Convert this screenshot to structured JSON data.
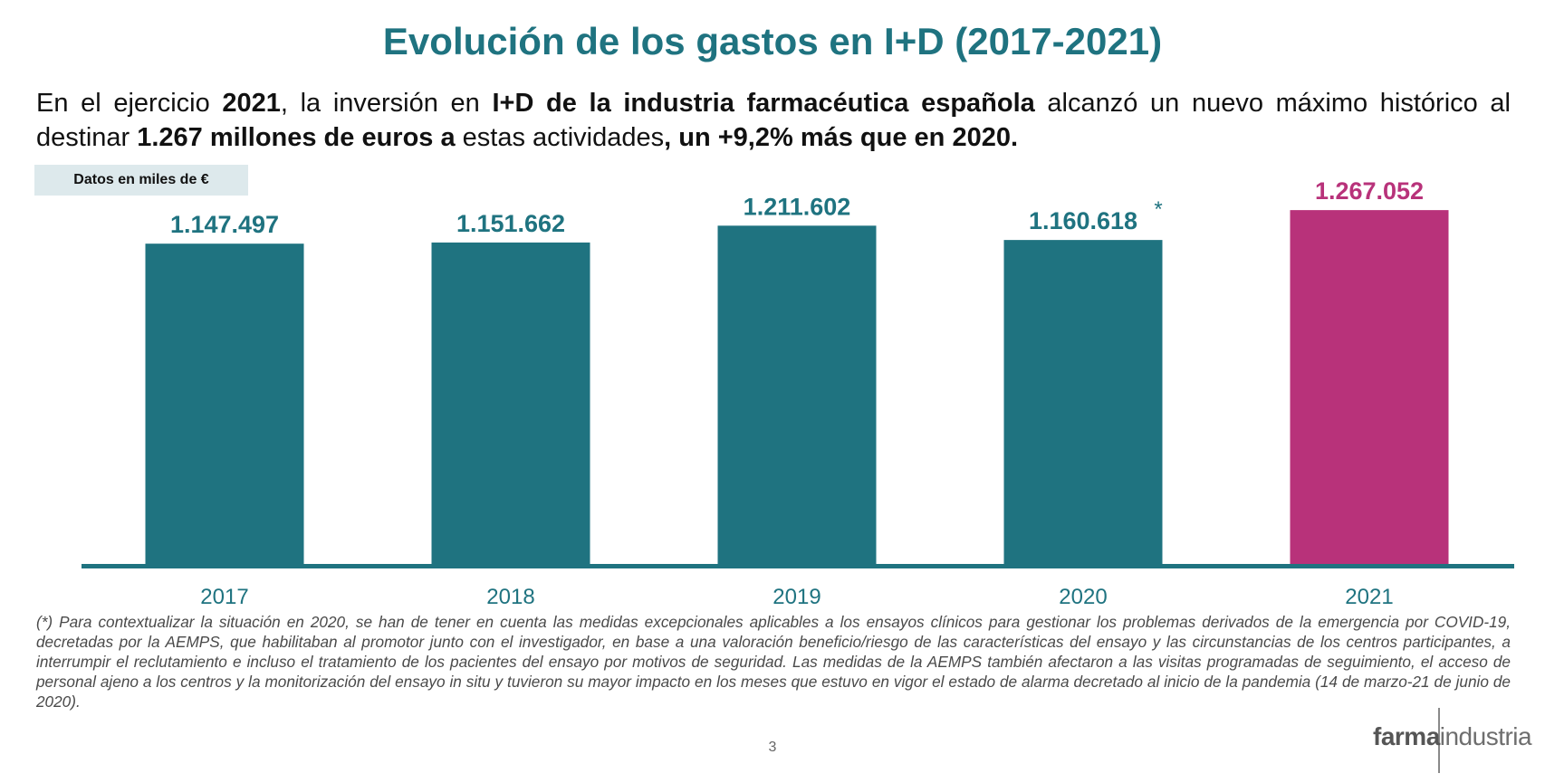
{
  "title": "Evolución de los gastos en I+D (2017-2021)",
  "intro": {
    "p1": "En el ejercicio ",
    "b1": "2021",
    "p2": ", la inversión en ",
    "b2": "I+D de la industria farmacéutica española",
    "p3": " alcanzó un nuevo máximo histórico al destinar ",
    "b3": "1.267 millones de euros a",
    "p4": " estas actividades",
    "b4": ", un +9,2% más que en 2020."
  },
  "units_label": "Datos en miles de €",
  "chart_data": {
    "type": "bar",
    "categories": [
      "2017",
      "2018",
      "2019",
      "2020",
      "2021"
    ],
    "values": [
      1147497,
      1151662,
      1211602,
      1160618,
      1267052
    ],
    "value_labels": [
      "1.147.497",
      "1.151.662",
      "1.211.602",
      "1.160.618",
      "1.267.052"
    ],
    "annotations": [
      "",
      "",
      "",
      "*",
      ""
    ],
    "ylim": [
      0,
      1290000
    ],
    "colors": [
      "#1f7380",
      "#1f7380",
      "#1f7380",
      "#1f7380",
      "#b8327a"
    ],
    "grid": false,
    "legend": "none"
  },
  "footnote": "(*) Para contextualizar la situación en  2020, se han de tener en cuenta las medidas excepcionales aplicables a los ensayos clínicos para gestionar los problemas derivados de la emergencia por COVID-19, decretadas por la AEMPS, que habilitaban al promotor junto con el investigador, en base a una valoración beneficio/riesgo de las características del ensayo y las circunstancias de los centros participantes, a interrumpir el reclutamiento e incluso el tratamiento de los pacientes del ensayo por motivos de seguridad. Las medidas de la AEMPS también afectaron a las visitas programadas de seguimiento, el acceso de personal ajeno a los centros y la monitorización del ensayo in situ y tuvieron su mayor impacto en los meses que estuvo en vigor el estado de alarma decretado al inicio de la pandemia (14 de marzo-21 de junio de 2020).",
  "page_number": "3",
  "logo": {
    "bold": "farma",
    "light": "industria"
  }
}
